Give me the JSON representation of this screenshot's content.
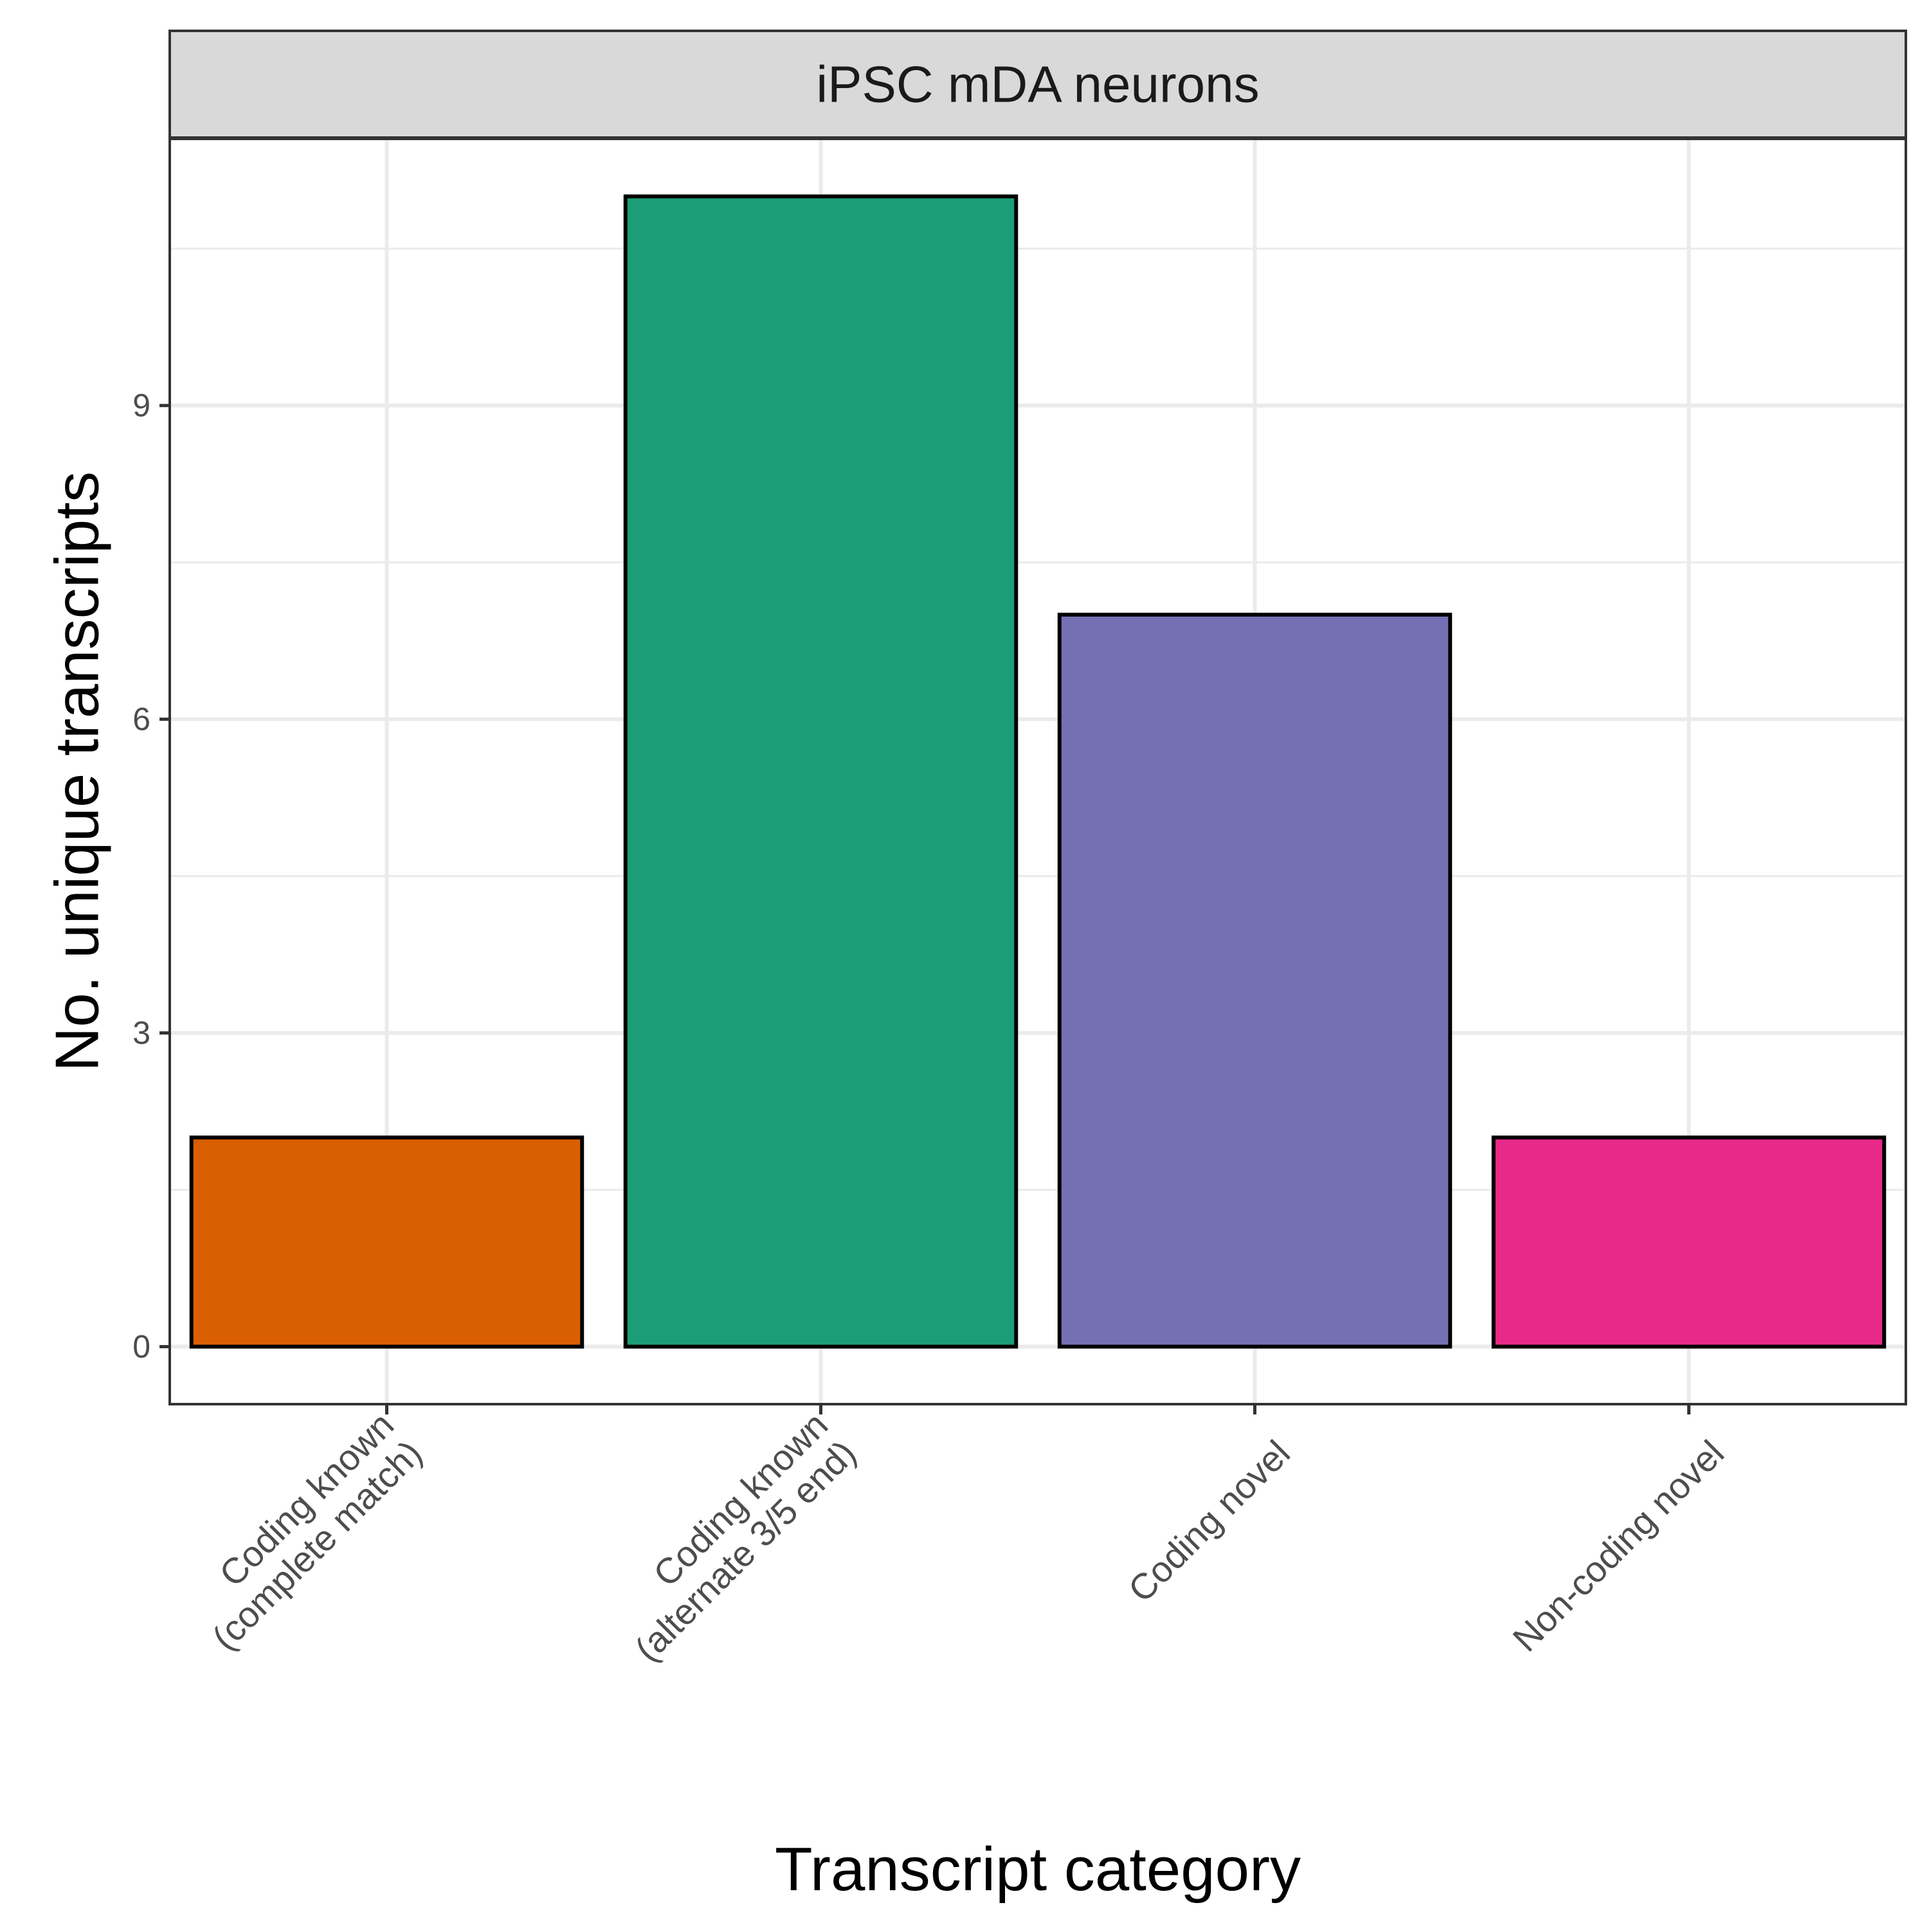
{
  "chart_data": {
    "type": "bar",
    "facet_label": "iPSC mDA neurons",
    "categories": [
      [
        "Coding known",
        "(complete match)"
      ],
      [
        "Coding known",
        "(alternate 3/5 end)"
      ],
      [
        "Coding novel"
      ],
      [
        "Non-coding novel"
      ]
    ],
    "values": [
      2,
      11,
      7,
      2
    ],
    "colors": [
      "#d95f02",
      "#1b9e77",
      "#7570b3",
      "#e7298a"
    ],
    "xlabel": "Transcript category",
    "ylabel": "No. unique transcripts",
    "y_ticks": [
      0,
      3,
      6,
      9
    ],
    "ylim": [
      -0.55,
      11.55
    ],
    "grid": true,
    "legend": "none"
  }
}
